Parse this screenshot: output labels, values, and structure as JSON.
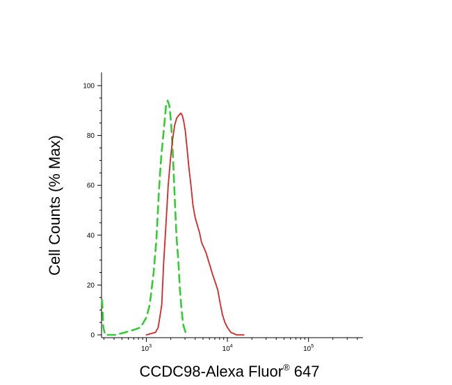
{
  "chart_data": {
    "type": "line",
    "title": "",
    "xlabel": {
      "main": "CCDC98-Alexa Fluor",
      "sup": "®",
      "tail": " 647"
    },
    "ylabel": "Cell Counts (% Max)",
    "x_scale": "log",
    "xlim": [
      280,
      470000
    ],
    "ylim": [
      0,
      100
    ],
    "y_ticks": [
      {
        "value": 0,
        "label": "0"
      },
      {
        "value": 20,
        "label": "20"
      },
      {
        "value": 40,
        "label": "40"
      },
      {
        "value": 60,
        "label": "60"
      },
      {
        "value": 80,
        "label": "80"
      },
      {
        "value": 100,
        "label": "100"
      }
    ],
    "x_ticks": [
      {
        "value": 1000,
        "base": "10",
        "exp": "3"
      },
      {
        "value": 10000,
        "base": "10",
        "exp": "4"
      },
      {
        "value": 100000,
        "base": "10",
        "exp": "5"
      }
    ],
    "grid": false,
    "legend": "none",
    "series": [
      {
        "color": "#33cc33",
        "dash": "dashed",
        "points": [
          [
            285,
            14
          ],
          [
            295,
            3
          ],
          [
            310,
            0
          ],
          [
            420,
            0
          ],
          [
            550,
            1
          ],
          [
            700,
            2
          ],
          [
            850,
            3
          ],
          [
            1000,
            7
          ],
          [
            1100,
            12
          ],
          [
            1230,
            25
          ],
          [
            1330,
            38
          ],
          [
            1430,
            58
          ],
          [
            1530,
            72
          ],
          [
            1640,
            82
          ],
          [
            1750,
            92
          ],
          [
            1830,
            94
          ],
          [
            1920,
            92
          ],
          [
            2020,
            85
          ],
          [
            2130,
            72
          ],
          [
            2240,
            55
          ],
          [
            2350,
            40
          ],
          [
            2480,
            30
          ],
          [
            2600,
            18
          ],
          [
            2720,
            10
          ],
          [
            2850,
            4
          ],
          [
            3050,
            1
          ],
          [
            3300,
            0
          ]
        ]
      },
      {
        "color": "#dd2222",
        "dash": "solid",
        "points": [
          [
            1000,
            0
          ],
          [
            1300,
            1
          ],
          [
            1400,
            3
          ],
          [
            1550,
            12
          ],
          [
            1630,
            28
          ],
          [
            1750,
            45
          ],
          [
            1860,
            60
          ],
          [
            1980,
            70
          ],
          [
            2100,
            78
          ],
          [
            2230,
            84
          ],
          [
            2370,
            87
          ],
          [
            2500,
            88
          ],
          [
            2660,
            89
          ],
          [
            2780,
            88
          ],
          [
            2880,
            86
          ],
          [
            3020,
            82
          ],
          [
            3150,
            76
          ],
          [
            3350,
            67
          ],
          [
            3550,
            60
          ],
          [
            3760,
            52
          ],
          [
            4000,
            47
          ],
          [
            4260,
            44
          ],
          [
            4530,
            41
          ],
          [
            4800,
            37
          ],
          [
            5120,
            35
          ],
          [
            5450,
            33
          ],
          [
            5800,
            30
          ],
          [
            6200,
            27
          ],
          [
            6600,
            24
          ],
          [
            7100,
            21
          ],
          [
            7600,
            18
          ],
          [
            8100,
            13
          ],
          [
            8700,
            8
          ],
          [
            9300,
            5
          ],
          [
            10000,
            3
          ],
          [
            11000,
            1
          ],
          [
            13000,
            0
          ],
          [
            16000,
            0
          ]
        ]
      }
    ]
  }
}
